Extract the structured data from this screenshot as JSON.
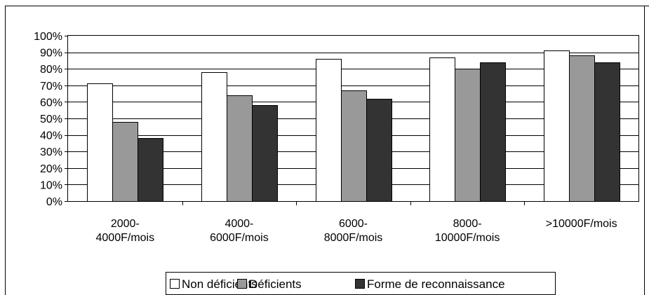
{
  "chart_data": {
    "type": "bar",
    "categories": [
      [
        "2000-",
        "4000F/mois"
      ],
      [
        "4000-",
        "6000F/mois"
      ],
      [
        "6000-",
        "8000F/mois"
      ],
      [
        "8000-",
        "10000F/mois"
      ],
      [
        ">10000F/mois"
      ]
    ],
    "series": [
      {
        "name": "Non déficients",
        "color": "#ffffff",
        "values": [
          71,
          78,
          86,
          87,
          91
        ]
      },
      {
        "name": "Déficients",
        "color": "#999999",
        "values": [
          48,
          64,
          67,
          80,
          88
        ]
      },
      {
        "name": "Forme de reconnaissance",
        "color": "#333333",
        "values": [
          38,
          58,
          62,
          84,
          84
        ]
      }
    ],
    "y_ticks": [
      "0%",
      "10%",
      "20%",
      "30%",
      "40%",
      "50%",
      "60%",
      "70%",
      "80%",
      "90%",
      "100%"
    ],
    "ylim": [
      0,
      100
    ],
    "grid": true,
    "legend_position": "bottom"
  }
}
